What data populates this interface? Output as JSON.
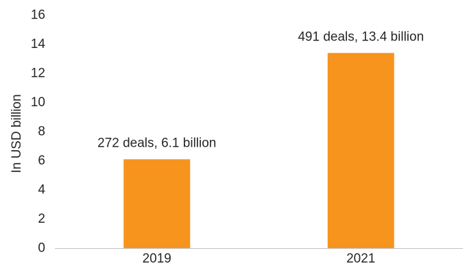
{
  "chart_data": {
    "type": "bar",
    "categories": [
      "2019",
      "2021"
    ],
    "values": [
      6.1,
      13.4
    ],
    "data_labels": [
      "272 deals, 6.1 billion",
      "491 deals, 13.4 billion"
    ],
    "ylabel": "In USD billion",
    "xlabel": "",
    "ylim": [
      0,
      16
    ],
    "yticks": [
      0,
      2,
      4,
      6,
      8,
      10,
      12,
      14,
      16
    ],
    "grid": false,
    "legend": "none",
    "bar_color": "#F7941D",
    "axis_color": "#BFBFBF",
    "text_color": "#262626"
  }
}
